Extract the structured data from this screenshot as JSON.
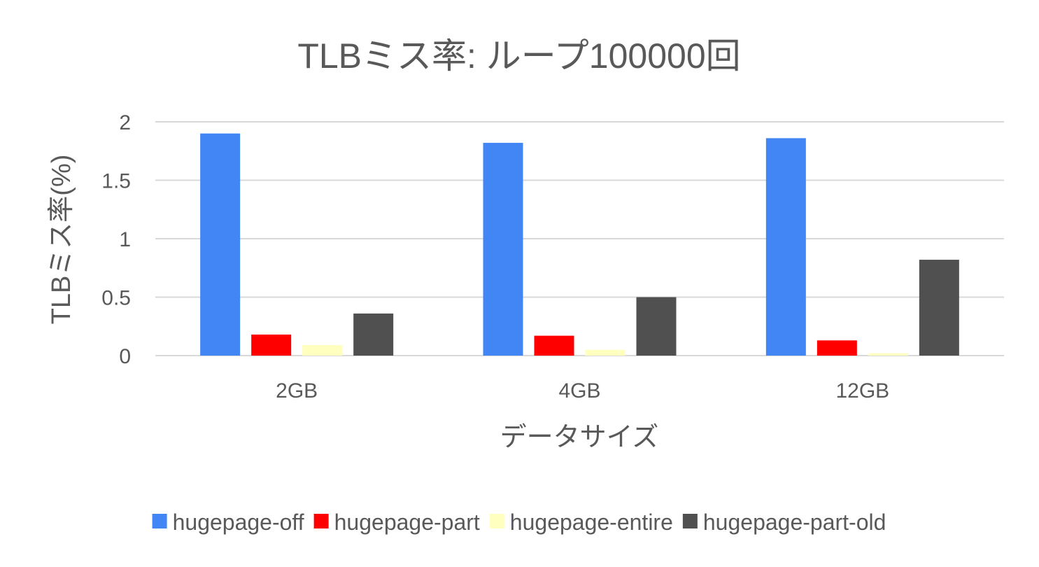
{
  "chart_data": {
    "type": "bar",
    "title": "TLBミス率: ループ100000回",
    "xlabel": "データサイズ",
    "ylabel": "TLBミス率(%)",
    "categories": [
      "2GB",
      "4GB",
      "12GB"
    ],
    "ylim": [
      0,
      2
    ],
    "yticks": [
      "0",
      "0.5",
      "1",
      "1.5",
      "2"
    ],
    "grid": true,
    "legend_position": "bottom",
    "series": [
      {
        "name": "hugepage-off",
        "color": "#4285f4",
        "values": [
          1.9,
          1.82,
          1.86
        ]
      },
      {
        "name": "hugepage-part",
        "color": "#ff0000",
        "values": [
          0.18,
          0.17,
          0.13
        ]
      },
      {
        "name": "hugepage-entire",
        "color": "#ffffc0",
        "values": [
          0.09,
          0.05,
          0.02
        ]
      },
      {
        "name": "hugepage-part-old",
        "color": "#505050",
        "values": [
          0.36,
          0.5,
          0.82
        ]
      }
    ]
  }
}
